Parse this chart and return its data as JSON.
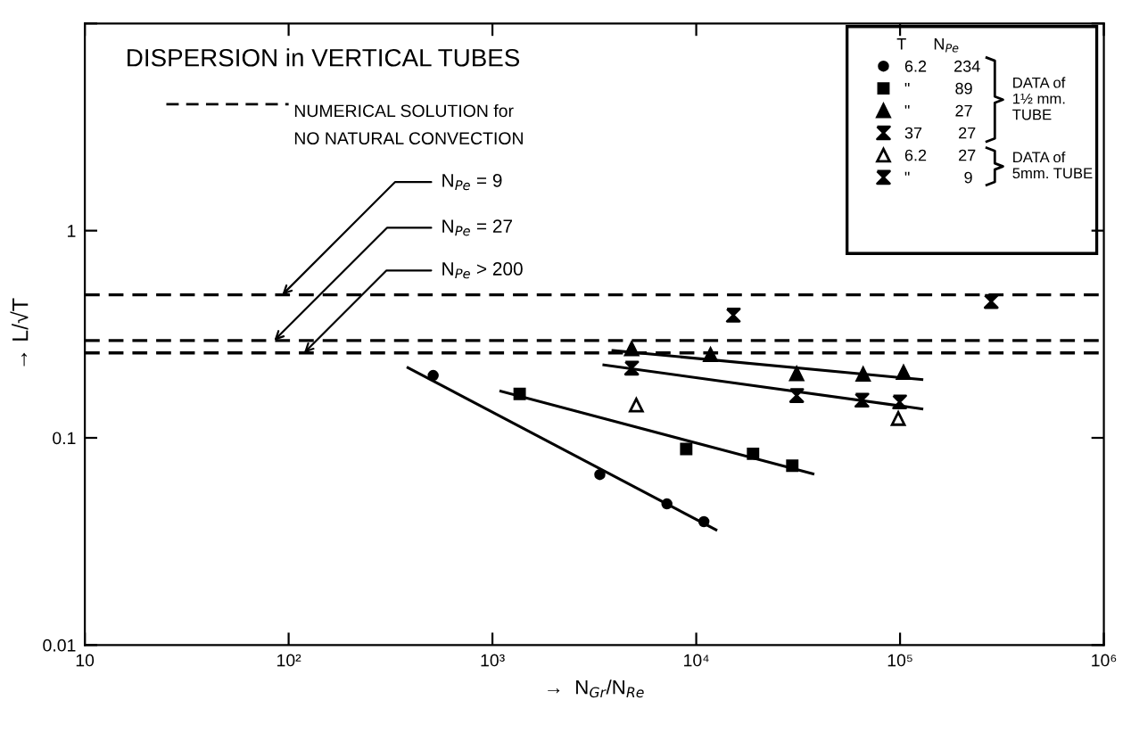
{
  "chart_data": {
    "type": "scatter",
    "title": "DISPERSION in VERTICAL TUBES",
    "xlabel": "→  N$_{Gr}$/N$_{Re}$",
    "ylabel": "→ L/√T",
    "log": "xy",
    "xlim": [
      10,
      1000000
    ],
    "ylim": [
      0.01,
      10
    ],
    "xticks": [
      {
        "value": 10,
        "label": "10"
      },
      {
        "value": 100,
        "label": "10²"
      },
      {
        "value": 1000,
        "label": "10³"
      },
      {
        "value": 10000,
        "label": "10⁴"
      },
      {
        "value": 100000,
        "label": "10⁵"
      },
      {
        "value": 1000000,
        "label": "10⁶"
      }
    ],
    "yticks": [
      0.01,
      0.1,
      1,
      {
        "value": 10,
        "label": null
      }
    ],
    "grid": false,
    "legend": "top right",
    "legend_title": "T      N$_{Pe}$",
    "series": [
      {
        "name": "6.2      234",
        "color": "#000000",
        "marker": "circle",
        "x": [
          512,
          3365,
          7180,
          10900
        ],
        "values": [
          0.2,
          0.0665,
          0.048,
          0.0394
        ]
      },
      {
        "name": "\"          89",
        "color": "#000000",
        "marker": "square",
        "x": [
          1360,
          8930,
          19000,
          29600
        ],
        "values": [
          0.163,
          0.0883,
          0.0838,
          0.0734
        ]
      },
      {
        "name": "\"          27",
        "color": "#000000",
        "marker": "triangle",
        "x": [
          4820,
          11750,
          31100,
          65900,
          104000
        ],
        "values": [
          0.269,
          0.252,
          0.204,
          0.203,
          0.207
        ]
      },
      {
        "name": "37        27",
        "color": "#000000",
        "x": [
          4820,
          31100,
          65000,
          99500
        ],
        "values": [
          0.217,
          0.16,
          0.152,
          0.149
        ]
      },
      {
        "name": "6.2       27",
        "color": "#000000",
        "marker": "triangle_open",
        "x": [
          5080,
          98000
        ],
        "values": [
          0.144,
          0.124
        ]
      },
      {
        "name": "\"            9",
        "color": "#000000",
        "x": [
          15200,
          280000
        ],
        "values": [
          0.391,
          0.455
        ]
      },
      {
        "type": "line",
        "color": "#000000",
        "marker": "none",
        "x": [
          385,
          12500
        ],
        "values": [
          0.218,
          0.036
        ]
      },
      {
        "type": "line",
        "color": "#000000",
        "marker": "none",
        "x": [
          1099,
          37400
        ],
        "values": [
          0.168,
          0.067
        ]
      },
      {
        "type": "line",
        "color": "#000000",
        "marker": "none",
        "x": [
          3900,
          128000
        ],
        "values": [
          0.264,
          0.191
        ]
      },
      {
        "type": "line",
        "color": "#000000",
        "marker": "none",
        "x": [
          3520,
          128000
        ],
        "values": [
          0.225,
          0.138
        ]
      }
    ],
    "ref_lines": [
      {
        "axis": "y",
        "value": 0.49,
        "color": "#000000",
        "line_style": "dashed"
      },
      {
        "axis": "y",
        "value": 0.295,
        "color": "#000000",
        "line_style": "dashed"
      },
      {
        "axis": "y",
        "value": 0.257,
        "color": "#000000",
        "line_style": "dashed"
      }
    ],
    "annotations": [
      "NUMERICAL SOLUTION for\nNO NATURAL CONVECTION",
      "DATA of\n1½ mm.\nTUBE",
      "DATA of\n5mm. TUBE",
      {
        "text": "N$_{Pe}$ = 9",
        "x": 93,
        "y": 0.49
      },
      {
        "text": "N$_{Pe}$ = 27",
        "x": 85,
        "y": 0.295
      },
      {
        "text": "N$_{Pe}$ > 200",
        "x": 119,
        "y": 0.257
      }
    ]
  }
}
